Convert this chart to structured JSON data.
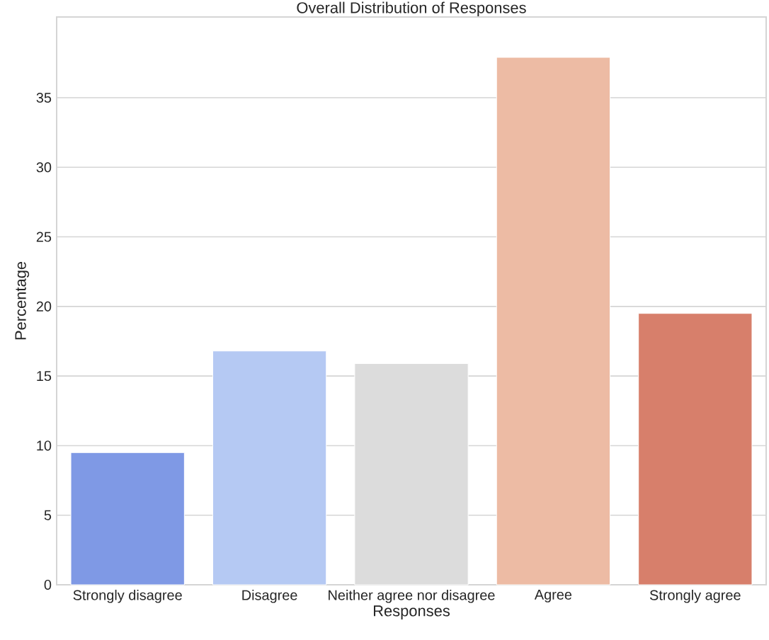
{
  "chart_data": {
    "type": "bar",
    "title": "Overall Distribution of Responses",
    "xlabel": "Responses",
    "ylabel": "Percentage",
    "categories": [
      "Strongly disagree",
      "Disagree",
      "Neither agree nor disagree",
      "Agree",
      "Strongly agree"
    ],
    "values": [
      9.5,
      16.8,
      15.9,
      37.9,
      19.5
    ],
    "colors": [
      "#7f99e5",
      "#b5c9f3",
      "#dcdcdc",
      "#edbba4",
      "#d77f6b"
    ],
    "ylim": [
      0,
      40.8
    ],
    "yticks": [
      0,
      5,
      10,
      15,
      20,
      25,
      30,
      35
    ],
    "grid": "y"
  }
}
